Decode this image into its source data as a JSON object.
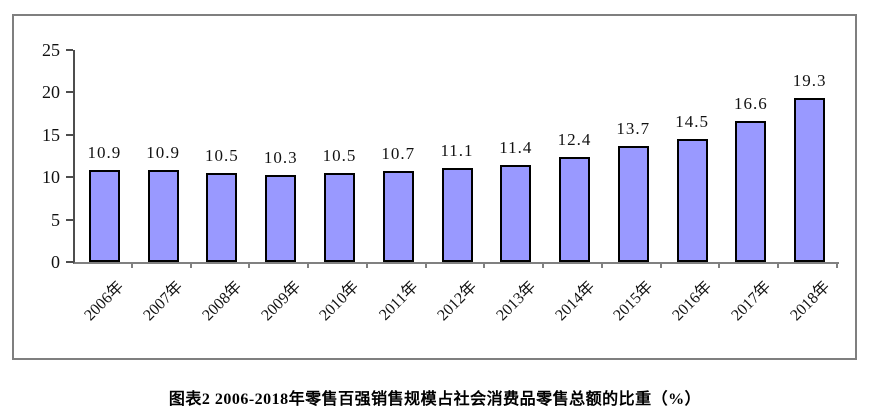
{
  "chart_data": {
    "type": "bar",
    "categories": [
      "2006年",
      "2007年",
      "2008年",
      "2009年",
      "2010年",
      "2011年",
      "2012年",
      "2013年",
      "2014年",
      "2015年",
      "2016年",
      "2017年",
      "2018年"
    ],
    "values": [
      10.9,
      10.9,
      10.5,
      10.3,
      10.5,
      10.7,
      11.1,
      11.4,
      12.4,
      13.7,
      14.5,
      16.6,
      19.3
    ],
    "value_labels": [
      "10.9",
      "10.9",
      "10.5",
      "10.3",
      "10.5",
      "10.7",
      "11.1",
      "11.4",
      "12.4",
      "13.7",
      "14.5",
      "16.6",
      "19.3"
    ],
    "title": "图表2  2006-2018年零售百强销售规模占社会消费品零售总额的比重（%）",
    "xlabel": "",
    "ylabel": "",
    "ylim": [
      0,
      25
    ],
    "yticks": [
      0,
      5,
      10,
      15,
      20,
      25
    ],
    "grid": "off",
    "legend": "none",
    "bar_fill_color": "#9999FF",
    "bar_border_color": "#000000",
    "axis_color": "#808080",
    "frame_border_color": "#7F7F7F"
  }
}
